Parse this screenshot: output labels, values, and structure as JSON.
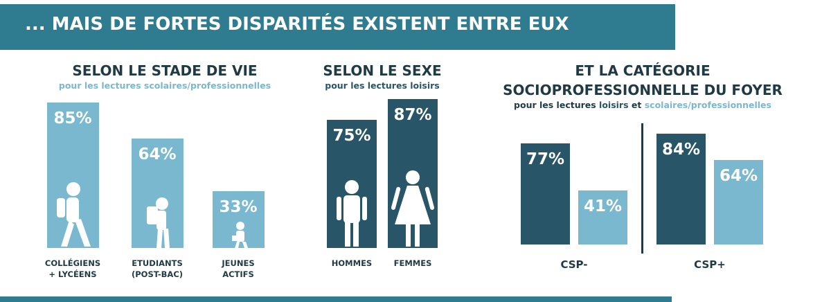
{
  "header": {
    "title": "... MAIS DE FORTES DISPARITÉS EXISTENT ENTRE EUX"
  },
  "chart_data": [
    {
      "type": "bar",
      "title": "SELON LE STADE DE VIE",
      "subtitle": "pour les lectures scolaires/professionnelles",
      "categories": [
        "COLLÉGIENS + LYCÉENS",
        "ETUDIANTS (POST-BAC)",
        "JEUNES ACTIFS"
      ],
      "values": [
        85,
        64,
        33
      ],
      "value_labels": [
        "85%",
        "64%",
        "33%"
      ],
      "color": "#7ab8cf"
    },
    {
      "type": "bar",
      "title": "SELON LE SEXE",
      "subtitle": "pour les lectures loisirs",
      "categories": [
        "HOMMES",
        "FEMMES"
      ],
      "values": [
        75,
        87
      ],
      "value_labels": [
        "75%",
        "87%"
      ],
      "color": "#285668"
    },
    {
      "type": "grouped-bar",
      "title": "ET LA CATÉGORIE SOCIOPROFESSIONNELLE DU FOYER",
      "subtitle": "pour les lectures",
      "legend_joiner": "et",
      "categories": [
        "CSP-",
        "CSP+"
      ],
      "series": [
        {
          "name": "loisirs",
          "color": "#285668",
          "values": [
            77,
            84
          ],
          "value_labels": [
            "77%",
            "84%"
          ]
        },
        {
          "name": "scolaires/professionnelles",
          "color": "#7ab8cf",
          "values": [
            41,
            64
          ],
          "value_labels": [
            "41%",
            "64%"
          ]
        }
      ]
    }
  ]
}
